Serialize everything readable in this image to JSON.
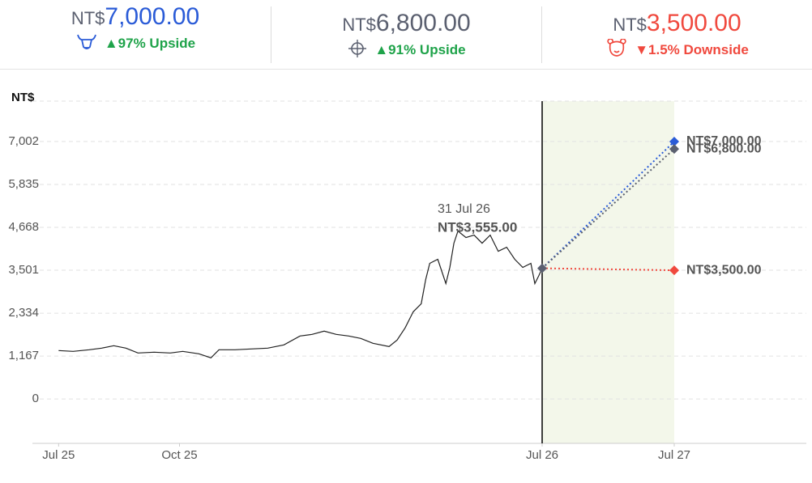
{
  "header": {
    "targets": [
      {
        "currency": "NT$",
        "price": "7,000.00",
        "change": "▲97% Upside",
        "kind": "bull"
      },
      {
        "currency": "NT$",
        "price": "6,800.00",
        "change": "▲91% Upside",
        "kind": "base"
      },
      {
        "currency": "NT$",
        "price": "3,500.00",
        "change": "▼1.5% Downside",
        "kind": "bear"
      }
    ]
  },
  "chart_data": {
    "type": "line",
    "y_label": "NT$",
    "x": [
      0,
      0.36,
      0.76,
      1.07,
      1.37,
      1.67,
      1.97,
      2.37,
      2.77,
      3.08,
      3.48,
      3.78,
      3.98,
      4.38,
      4.78,
      5.19,
      5.59,
      5.99,
      6.29,
      6.59,
      6.89,
      7.2,
      7.5,
      7.8,
      8.2,
      8.4,
      8.6,
      8.8,
      9.0,
      9.11,
      9.21,
      9.41,
      9.61,
      9.71,
      9.81,
      9.91,
      10.11,
      10.31,
      10.51,
      10.71,
      10.91,
      11.12,
      11.32,
      11.52,
      11.72,
      11.82,
      11.92,
      12
    ],
    "values": [
      1317,
      1295,
      1339,
      1383,
      1449,
      1383,
      1251,
      1273,
      1251,
      1295,
      1229,
      1119,
      1339,
      1339,
      1361,
      1383,
      1471,
      1712,
      1756,
      1844,
      1756,
      1712,
      1646,
      1515,
      1427,
      1602,
      1932,
      2371,
      2590,
      3249,
      3688,
      3798,
      3139,
      3578,
      4236,
      4566,
      4390,
      4456,
      4236,
      4456,
      4017,
      4127,
      3798,
      3578,
      3688,
      3139,
      3358,
      3555
    ],
    "color": "#222222",
    "annotation": {
      "date": "31 Jul 26",
      "label": "NT$3,555.00"
    },
    "target_x": 24,
    "targets": [
      {
        "value": 7000,
        "label": "NT$7,000.00",
        "color": "#2a5bd7"
      },
      {
        "value": 6800,
        "label": "NT$6,800.00",
        "color": "#5b6070"
      },
      {
        "value": 3500,
        "label": "NT$3,500.00",
        "color": "#f0493e"
      }
    ],
    "forecast_color": "#f3f7ea",
    "xlim": [
      -0.65,
      36
    ],
    "xticks": [
      {
        "value": 0,
        "label": "Jul 25"
      },
      {
        "value": 3,
        "label": "Oct 25"
      },
      {
        "value": 12,
        "label": "Jul 26"
      },
      {
        "value": 24,
        "label": "Jul 27"
      }
    ],
    "ylim": [
      -1207,
      8100
    ],
    "yticks": [
      0,
      {
        "value": 1167,
        "label": "1,167"
      },
      {
        "value": 2334,
        "label": "2,334"
      },
      {
        "value": 3501,
        "label": "3,501"
      },
      {
        "value": 4668,
        "label": "4,668"
      },
      {
        "value": 5835,
        "label": "5,835"
      },
      {
        "value": 7002,
        "label": "7,002"
      }
    ],
    "grid": true
  }
}
